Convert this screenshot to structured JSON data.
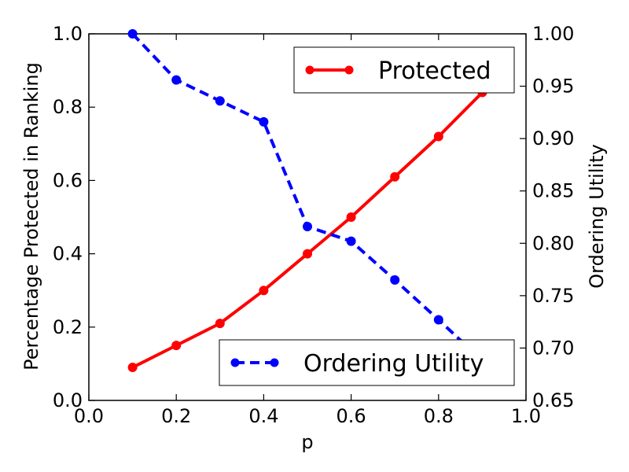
{
  "chart_data": {
    "type": "line",
    "xlabel": "p",
    "ylabel_left": "Percentage Protected in Ranking",
    "ylabel_right": "Ordering Utility",
    "xlim": [
      0.0,
      1.0
    ],
    "ylim_left": [
      0.0,
      1.0
    ],
    "ylim_right": [
      0.65,
      1.0
    ],
    "x_ticks": [
      "0.0",
      "0.2",
      "0.4",
      "0.6",
      "0.8",
      "1.0"
    ],
    "y_left_ticks": [
      "0.0",
      "0.2",
      "0.4",
      "0.6",
      "0.8",
      "1.0"
    ],
    "y_right_ticks": [
      "0.65",
      "0.70",
      "0.75",
      "0.80",
      "0.85",
      "0.90",
      "0.95",
      "1.00"
    ],
    "grid": false,
    "series": [
      {
        "name": "Protected",
        "axis": "left",
        "color": "#ff0000",
        "line_style": "solid",
        "marker": "circle",
        "legend_position": "top-right",
        "x": [
          0.1,
          0.2,
          0.3,
          0.4,
          0.5,
          0.6,
          0.7,
          0.8,
          0.9
        ],
        "values": [
          0.09,
          0.15,
          0.21,
          0.3,
          0.4,
          0.5,
          0.61,
          0.72,
          0.84
        ]
      },
      {
        "name": "Ordering Utility",
        "axis": "right",
        "color": "#0000ff",
        "line_style": "dashed",
        "marker": "circle",
        "legend_position": "bottom-right",
        "x": [
          0.1,
          0.2,
          0.3,
          0.4,
          0.5,
          0.6,
          0.7,
          0.8,
          0.9
        ],
        "values": [
          1.0,
          0.956,
          0.936,
          0.916,
          0.816,
          0.802,
          0.765,
          0.727,
          0.688
        ]
      }
    ]
  }
}
